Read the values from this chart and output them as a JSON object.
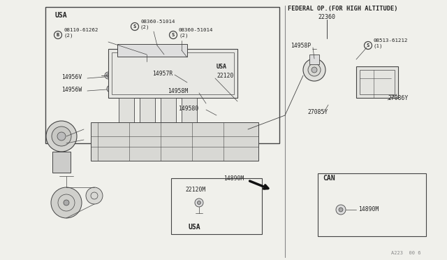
{
  "bg_color": "#f0f0eb",
  "line_color": "#444444",
  "text_color": "#222222",
  "title_text": "FEDERAL OP.(FOR HIGH ALTITUDE)",
  "part_22360": "22360",
  "part_22120": "22120",
  "part_22120M": "22120M",
  "part_14956V": "14956V",
  "part_14956W": "14956W",
  "part_14957R": "14957R",
  "part_14958M": "14958M",
  "part_14958P": "14958P",
  "part_149580": "149580",
  "part_14890M": "14890M",
  "part_27085Y": "27085Y",
  "part_27086Y": "27086Y",
  "part_08360_1": "08360-51014\n(2)",
  "part_08360_2": "08360-51014\n(2)",
  "part_08110": "08110-61262\n(2)",
  "part_08513": "08513-61212\n(1)",
  "label_usa1": "USA",
  "label_usa2": "USA",
  "label_usa3": "USA",
  "label_can": "CAN",
  "footer": "A223  00 6",
  "gray_light": "#cccccc",
  "gray_mid": "#aaaaaa",
  "gray_dark": "#888888"
}
